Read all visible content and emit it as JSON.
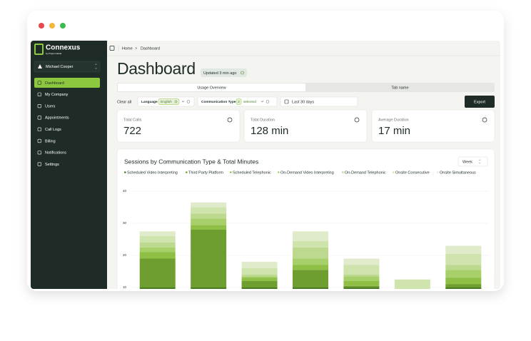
{
  "sidebar": {
    "brand": "Connexus",
    "brand_sub": "by Propio Global",
    "user": "Michael Cooper",
    "nav": [
      "Dashboard",
      "My Company",
      "Users",
      "Appointments",
      "Call Logs",
      "Billing",
      "Notifications",
      "Settings"
    ],
    "active": 0
  },
  "breadcrumb": [
    "Home",
    "Dashboard"
  ],
  "header": {
    "title": "Dashboard",
    "updated": "Updated 3 min ago"
  },
  "tabs": [
    "Usage Overview",
    "Tab name"
  ],
  "active_tab": 0,
  "filters": {
    "clear": "Clear all",
    "language": {
      "label": "Language",
      "value": "English"
    },
    "communication_type": {
      "label": "Communication Type",
      "count": "2",
      "suffix": "selected"
    },
    "date": "Last 30 days",
    "export": "Export"
  },
  "stats": [
    {
      "label": "Total Calls",
      "value": "722"
    },
    {
      "label": "Total Duration",
      "value": "128 min"
    },
    {
      "label": "Average Duration",
      "value": "17 min"
    }
  ],
  "chart_data": {
    "type": "bar",
    "stacked": true,
    "title": "Sessions by Communication Type & Total Minutes",
    "period": "Week",
    "ylim": [
      0,
      40
    ],
    "yticks": [
      10,
      20,
      30,
      40
    ],
    "grid": true,
    "series": [
      {
        "name": "Scheduled Video Interpreting",
        "color": "#4a7a23",
        "values": [
          10,
          10,
          10,
          10,
          10,
          0,
          10
        ]
      },
      {
        "name": "Third Party Platform",
        "color": "#6f9e30",
        "values": [
          9,
          18,
          2,
          5.5,
          0.5,
          0,
          1
        ]
      },
      {
        "name": "Scheduled Telephonic",
        "color": "#8fbf45",
        "values": [
          2,
          1.5,
          1,
          1.5,
          1.5,
          0,
          2
        ]
      },
      {
        "name": "On-Demand Video Interpreting",
        "color": "#a7cf6a",
        "values": [
          1.5,
          2,
          0.5,
          2,
          1.5,
          0,
          2.5
        ]
      },
      {
        "name": "On-Demand Telephonic",
        "color": "#bcd98f",
        "values": [
          1.5,
          1.5,
          0.5,
          3.5,
          0.5,
          0,
          1.5
        ]
      },
      {
        "name": "Onsite Consecutive",
        "color": "#cfe3ad",
        "values": [
          2,
          2,
          2,
          2,
          3,
          12.5,
          3.5
        ]
      },
      {
        "name": "Onsite Simultaneous",
        "color": "#e0ebcc",
        "values": [
          1.5,
          1.5,
          2,
          3,
          2,
          0,
          2.5
        ]
      }
    ]
  }
}
